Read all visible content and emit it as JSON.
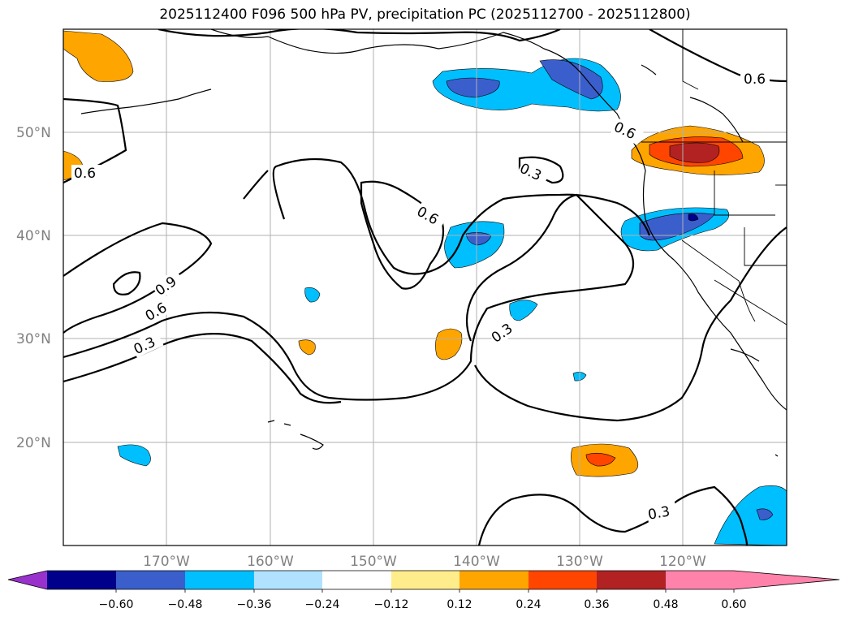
{
  "title": "2025112400 F096 500 hPa PV, precipitation PC (2025112700 - 2025112800)",
  "map": {
    "lon_ticks": [
      "170°W",
      "160°W",
      "150°W",
      "140°W",
      "130°W",
      "120°W"
    ],
    "lat_ticks": [
      "50°N",
      "40°N",
      "30°N",
      "20°N"
    ],
    "contour_labels": [
      "0.6",
      "0.6",
      "0.3",
      "0.6",
      "0.6",
      "0.9",
      "0.6",
      "0.3",
      "0.3",
      "0.3"
    ]
  },
  "colorbar": {
    "colors": [
      "#9932cc",
      "#00008b",
      "#3a5fcd",
      "#00bfff",
      "#b0e2ff",
      "#ffffff",
      "#ffec8b",
      "#ffa500",
      "#ff4500",
      "#b22222",
      "#ff82ab"
    ],
    "labels": [
      "−0.60",
      "−0.48",
      "−0.36",
      "−0.24",
      "−0.12",
      "0.12",
      "0.24",
      "0.36",
      "0.48",
      "0.60"
    ]
  }
}
